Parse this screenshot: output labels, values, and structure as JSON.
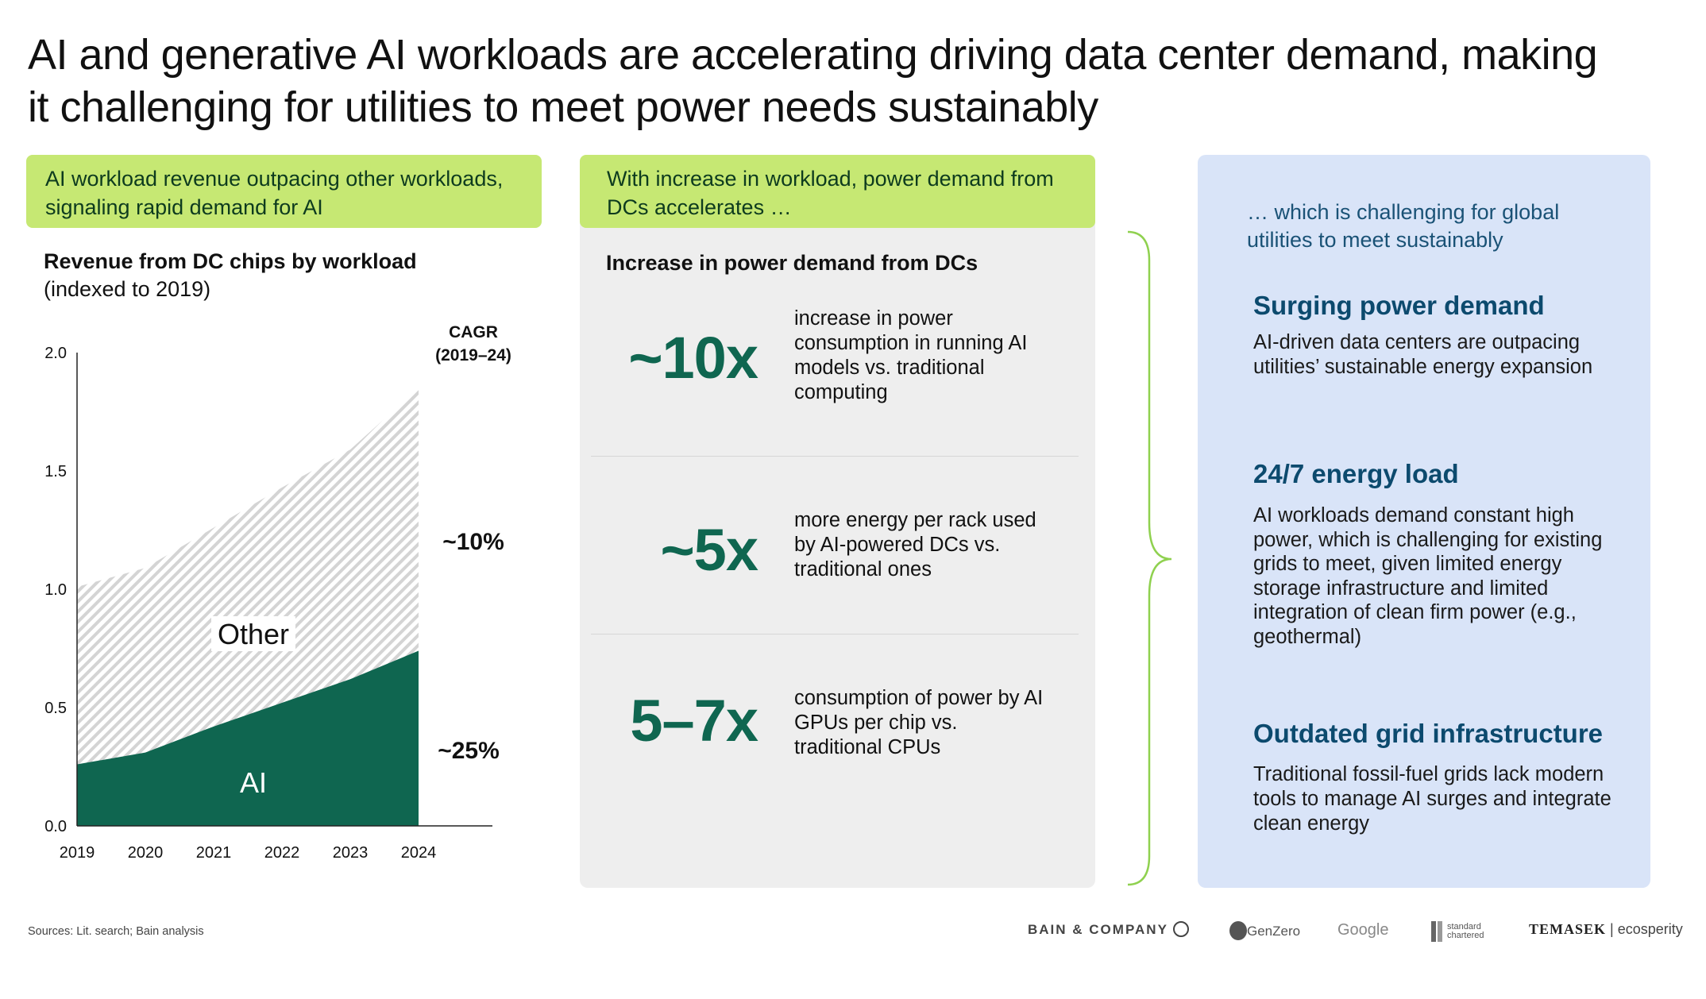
{
  "title": "AI and generative AI workloads are accelerating driving data center demand, making it challenging for utilities to meet power needs sustainably",
  "left": {
    "header": "AI workload revenue outpacing other workloads, signaling rapid demand for AI"
  },
  "mid": {
    "header": "With increase in workload, power demand from DCs accelerates …",
    "subtitle": "Increase in power demand from DCs",
    "stats": [
      {
        "value": "~10x",
        "text": "increase in power consumption in running AI models vs. traditional computing"
      },
      {
        "value": "~5x",
        "text": "more energy per rack used by AI-powered DCs vs. traditional ones"
      },
      {
        "value": "5–7x",
        "text": "consumption of power by AI GPUs per chip vs. traditional CPUs"
      }
    ]
  },
  "right": {
    "intro": "… which is challenging for global utilities to meet sustainably",
    "items": [
      {
        "heading": "Surging power demand",
        "body": "AI-driven data centers are outpacing utilities’ sustainable energy expansion"
      },
      {
        "heading": "24/7 energy load",
        "body": "AI workloads demand constant high power, which is challenging for existing grids to meet, given limited energy storage infrastructure and limited integration of clean firm power (e.g., geothermal)"
      },
      {
        "heading": "Outdated grid infrastructure",
        "body": "Traditional fossil-fuel grids lack modern tools to manage AI surges and integrate clean energy"
      }
    ]
  },
  "sources": "Sources: Lit. search; Bain analysis",
  "logos": [
    "BAIN & COMPANY",
    "GenZero",
    "Google",
    "standard chartered",
    "TEMASEK",
    "ecosperity"
  ],
  "colors": {
    "green_header": "#c6e873",
    "ai_fill": "#0f6650",
    "right_panel": "#d9e4f8",
    "heading_blue": "#0c4a6e"
  },
  "chart_data": {
    "type": "area",
    "stacked": true,
    "title": "Revenue from DC chips by workload",
    "subtitle": "(indexed to 2019)",
    "categories": [
      "2019",
      "2020",
      "2021",
      "2022",
      "2023",
      "2024"
    ],
    "series": [
      {
        "name": "AI",
        "values": [
          0.26,
          0.31,
          0.42,
          0.52,
          0.62,
          0.74
        ],
        "cagr": "~25%"
      },
      {
        "name": "Other",
        "values": [
          0.75,
          0.78,
          0.84,
          0.91,
          0.97,
          1.11
        ],
        "cagr": "~10%"
      }
    ],
    "ylim": [
      0,
      2.0
    ],
    "yticks": [
      "0.0",
      "0.5",
      "1.0",
      "1.5",
      "2.0"
    ],
    "cagr_label": "CAGR",
    "cagr_period": "(2019–24)"
  }
}
